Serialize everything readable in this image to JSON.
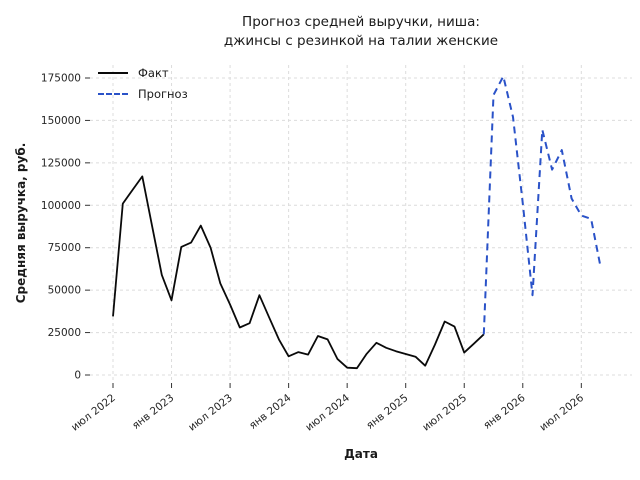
{
  "title": {
    "line1": "Прогноз средней выручки, ниша:",
    "line2": "джинсы с резинкой на талии женские"
  },
  "chart_data": {
    "type": "line",
    "title": "Прогноз средней выручки, ниша: джинсы с резинкой на талии женские",
    "xlabel": "Дата",
    "ylabel": "Средняя выручка, руб.",
    "grid": true,
    "legend_position": "upper left",
    "ylim": [
      0,
      183000
    ],
    "y_ticks": [
      0,
      25000,
      50000,
      75000,
      100000,
      125000,
      150000,
      175000
    ],
    "x_ticks": [
      {
        "month_index": 0,
        "label": "июл 2022"
      },
      {
        "month_index": 6,
        "label": "янв 2023"
      },
      {
        "month_index": 12,
        "label": "июл 2023"
      },
      {
        "month_index": 18,
        "label": "янв 2024"
      },
      {
        "month_index": 24,
        "label": "июл 2024"
      },
      {
        "month_index": 30,
        "label": "янв 2025"
      },
      {
        "month_index": 36,
        "label": "июл 2025"
      },
      {
        "month_index": 42,
        "label": "янв 2026"
      },
      {
        "month_index": 48,
        "label": "июл 2026"
      }
    ],
    "series": [
      {
        "id": "fact",
        "name": "Факт",
        "color": "#0a0a0a",
        "line_style": "solid",
        "start_month_index": 0,
        "months": [
          "2022-07",
          "2022-08",
          "2022-09",
          "2022-10",
          "2022-11",
          "2022-12",
          "2023-01",
          "2023-02",
          "2023-03",
          "2023-04",
          "2023-05",
          "2023-06",
          "2023-07",
          "2023-08",
          "2023-09",
          "2023-10",
          "2023-11",
          "2023-12",
          "2024-01",
          "2024-02",
          "2024-03",
          "2024-04",
          "2024-05",
          "2024-06",
          "2024-07",
          "2024-08",
          "2024-09",
          "2024-10",
          "2024-11",
          "2024-12",
          "2025-01",
          "2025-02",
          "2025-03",
          "2025-04",
          "2025-05",
          "2025-06",
          "2025-07",
          "2025-08",
          "2025-09"
        ],
        "values": [
          34500,
          101000,
          109000,
          117000,
          88000,
          59000,
          44000,
          75500,
          78000,
          88000,
          75000,
          54000,
          41500,
          28000,
          30500,
          47000,
          34000,
          21000,
          11000,
          13500,
          12000,
          23000,
          21000,
          9500,
          4300,
          4000,
          12500,
          19000,
          16000,
          14000,
          12400,
          10800,
          5500,
          18000,
          31500,
          28500,
          13200,
          18500,
          24000
        ]
      },
      {
        "id": "forecast",
        "name": "Прогноз",
        "color": "#2a52c8",
        "line_style": "dashed",
        "start_month_index": 38,
        "months": [
          "2025-09",
          "2025-10",
          "2025-11",
          "2025-12",
          "2026-01",
          "2026-02",
          "2026-03",
          "2026-04",
          "2026-05",
          "2026-06",
          "2026-07",
          "2026-08",
          "2026-09"
        ],
        "values": [
          24000,
          165000,
          176000,
          152000,
          101000,
          47000,
          144500,
          121000,
          132500,
          104000,
          94000,
          92000,
          63000
        ]
      }
    ]
  }
}
